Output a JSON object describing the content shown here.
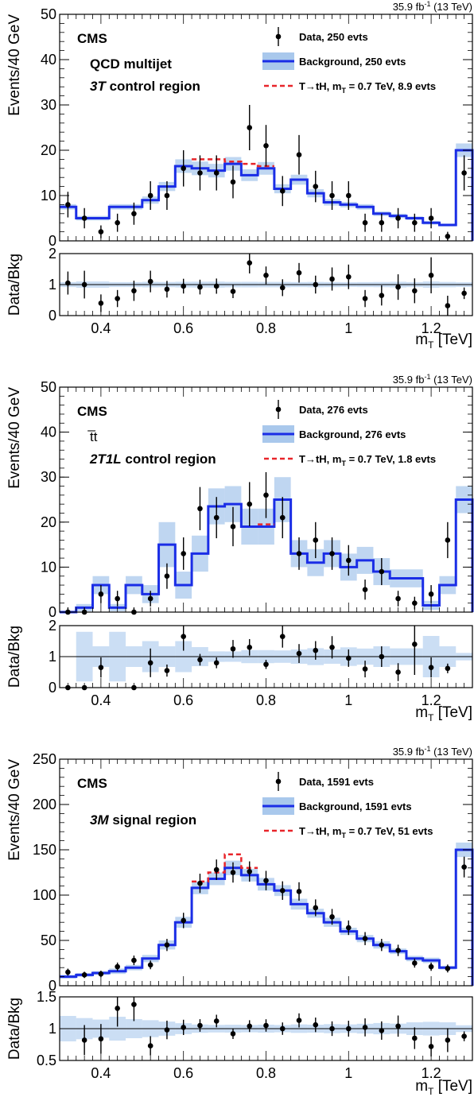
{
  "chart_data": [
    {
      "type": "histogram",
      "lumi": "35.9 fb",
      "lumi_sup": "-1",
      "energy": "(13 TeV)",
      "cms": "CMS",
      "title_plain": "QCD multijet",
      "region_italic": "3T",
      "region_rest": " control region",
      "ylabel": "Events/40 GeV",
      "ratio_ylabel": "Data/Bkg",
      "xlabel": "m",
      "xlabel_sub": "T",
      "xlabel_unit": " [TeV]",
      "xlim": [
        0.3,
        1.3
      ],
      "ylim": [
        0,
        50
      ],
      "yticks": [
        0,
        10,
        20,
        30,
        40,
        50
      ],
      "ratio_ylim": [
        0,
        2
      ],
      "ratio_yticks": [
        "0",
        "1",
        "2"
      ],
      "ratio_yticks_val": [
        0,
        1,
        2
      ],
      "xticks": [
        0.4,
        0.6,
        0.8,
        1.0,
        1.2
      ],
      "xtick_labels": [
        "0.4",
        "0.6",
        "0.8",
        "1",
        "1.2"
      ],
      "legend": {
        "data": "Data, 250 evts",
        "background": "Background, 250 evts",
        "signal_prefix": "T→tH, m",
        "signal_sub": "T",
        "signal_suffix": " = 0.7 TeV, 8.9 evts"
      },
      "bins": [
        0.3,
        0.34,
        0.38,
        0.42,
        0.46,
        0.5,
        0.54,
        0.58,
        0.62,
        0.66,
        0.7,
        0.74,
        0.78,
        0.82,
        0.86,
        0.9,
        0.94,
        0.98,
        1.02,
        1.06,
        1.1,
        1.14,
        1.18,
        1.22,
        1.26,
        1.3
      ],
      "background": [
        7.5,
        5,
        5,
        7.5,
        7.5,
        9,
        12,
        16.5,
        16,
        15.5,
        17,
        14.5,
        16,
        11.5,
        13.5,
        10.5,
        8.5,
        8,
        7.5,
        6,
        5.5,
        5,
        4,
        3.5,
        20
      ],
      "bkg_unc": [
        0.6,
        0.5,
        0.5,
        0.6,
        0.6,
        0.8,
        1,
        1.5,
        1.5,
        1.5,
        1.5,
        1.3,
        1.4,
        1,
        1.1,
        0.9,
        0.7,
        0.6,
        0.6,
        0.5,
        0.5,
        0.4,
        0.4,
        0.3,
        1.5
      ],
      "signal": [
        null,
        null,
        null,
        null,
        null,
        null,
        null,
        null,
        18,
        18,
        17.5,
        17,
        16.5,
        null,
        null,
        null,
        null,
        null,
        null,
        null,
        null,
        null,
        null,
        null,
        null
      ],
      "data": [
        8,
        5,
        2,
        4,
        6,
        10,
        10,
        16,
        15,
        15,
        13,
        25,
        21,
        11,
        19,
        12,
        10,
        10,
        4,
        4,
        5,
        4,
        5,
        1,
        15
      ],
      "ratio": [
        1.05,
        1.0,
        0.4,
        0.55,
        0.8,
        1.1,
        0.85,
        0.95,
        0.92,
        0.95,
        0.78,
        1.7,
        1.3,
        0.9,
        1.38,
        1.0,
        1.18,
        1.25,
        0.55,
        0.65,
        0.92,
        0.8,
        1.3,
        0.32,
        0.72
      ]
    },
    {
      "type": "histogram",
      "lumi": "35.9 fb",
      "lumi_sup": "-1",
      "energy": "(13 TeV)",
      "cms": "CMS",
      "title_plain": "t̅t",
      "region_italic": "2T1L",
      "region_rest": " control region",
      "ylabel": "Events/40 GeV",
      "ratio_ylabel": "Data/Bkg",
      "xlabel": "m",
      "xlabel_sub": "T",
      "xlabel_unit": " [TeV]",
      "xlim": [
        0.3,
        1.3
      ],
      "ylim": [
        0,
        50
      ],
      "yticks": [
        0,
        10,
        20,
        30,
        40,
        50
      ],
      "ratio_ylim": [
        0,
        2
      ],
      "ratio_yticks": [
        "0",
        "1",
        "2"
      ],
      "ratio_yticks_val": [
        0,
        1,
        2
      ],
      "xticks": [
        0.4,
        0.6,
        0.8,
        1.0,
        1.2
      ],
      "xtick_labels": [
        "0.4",
        "0.6",
        "0.8",
        "1",
        "1.2"
      ],
      "legend": {
        "data": "Data, 276 evts",
        "background": "Background, 276 evts",
        "signal_prefix": "T→tH, m",
        "signal_sub": "T",
        "signal_suffix": " = 0.7 TeV, 1.8 evts"
      },
      "bins": [
        0.3,
        0.34,
        0.38,
        0.42,
        0.46,
        0.5,
        0.54,
        0.58,
        0.62,
        0.66,
        0.7,
        0.74,
        0.78,
        0.82,
        0.86,
        0.9,
        0.94,
        0.98,
        1.02,
        1.06,
        1.1,
        1.14,
        1.18,
        1.22,
        1.26,
        1.3
      ],
      "background": [
        0,
        1,
        6,
        1,
        6,
        4,
        15,
        6,
        13,
        23.5,
        24,
        19,
        19,
        25,
        13,
        11,
        13,
        10,
        11.5,
        9,
        7.5,
        7.5,
        1.5,
        6,
        25
      ],
      "bkg_unc": [
        0.3,
        0.8,
        2,
        0.8,
        2,
        2,
        5,
        3,
        4,
        4,
        4,
        4,
        4,
        5,
        3,
        3,
        3,
        3,
        3,
        3,
        2,
        2,
        1,
        2,
        3
      ],
      "signal": [
        null,
        null,
        null,
        null,
        null,
        null,
        null,
        null,
        null,
        null,
        null,
        null,
        19.5,
        null,
        null,
        null,
        null,
        null,
        null,
        null,
        null,
        null,
        null,
        null,
        null
      ],
      "data": [
        0,
        0,
        4,
        3,
        0,
        3,
        8,
        13,
        23,
        21,
        19,
        24,
        26,
        21,
        13,
        16,
        13,
        11.5,
        5,
        9,
        3,
        2,
        4,
        16,
        null
      ],
      "ratio": [
        0,
        0,
        0.65,
        null,
        0,
        0.8,
        0.55,
        1.65,
        0.9,
        0.8,
        1.25,
        1.3,
        0.75,
        1.65,
        1.1,
        1.2,
        1.3,
        0.95,
        0.6,
        1.0,
        0.5,
        1.4,
        0.65,
        0.62,
        null
      ]
    },
    {
      "type": "histogram",
      "lumi": "35.9 fb",
      "lumi_sup": "-1",
      "energy": "(13 TeV)",
      "cms": "CMS",
      "title_plain": "",
      "region_italic": "3M",
      "region_rest": " signal region",
      "ylabel": "Events/40 GeV",
      "ratio_ylabel": "Data/Bkg",
      "xlabel": "m",
      "xlabel_sub": "T",
      "xlabel_unit": " [TeV]",
      "xlim": [
        0.3,
        1.3
      ],
      "ylim": [
        0,
        250
      ],
      "yticks": [
        0,
        50,
        100,
        150,
        200,
        250
      ],
      "ratio_ylim": [
        0.5,
        1.5
      ],
      "ratio_yticks": [
        "0.5",
        "1",
        "1.5"
      ],
      "ratio_yticks_val": [
        0.5,
        1,
        1.5
      ],
      "xticks": [
        0.4,
        0.6,
        0.8,
        1.0,
        1.2
      ],
      "xtick_labels": [
        "0.4",
        "0.6",
        "0.8",
        "1",
        "1.2"
      ],
      "legend": {
        "data": "Data, 1591 evts",
        "background": "Background, 1591 evts",
        "signal_prefix": "T→tH, m",
        "signal_sub": "T",
        "signal_suffix": " = 0.7 TeV, 51 evts"
      },
      "bins": [
        0.3,
        0.34,
        0.38,
        0.42,
        0.46,
        0.5,
        0.54,
        0.58,
        0.62,
        0.66,
        0.7,
        0.74,
        0.78,
        0.82,
        0.86,
        0.9,
        0.94,
        0.98,
        1.02,
        1.06,
        1.1,
        1.14,
        1.18,
        1.22,
        1.26,
        1.3
      ],
      "background": [
        10,
        12,
        14,
        16,
        20,
        30,
        45,
        70,
        108,
        118,
        130,
        122,
        112,
        105,
        90,
        80,
        70,
        60,
        52,
        45,
        38,
        30,
        28,
        20,
        150
      ],
      "bkg_unc": [
        2,
        2,
        2,
        3,
        3,
        4,
        5,
        6,
        7,
        7,
        8,
        7,
        7,
        6,
        6,
        5,
        5,
        4,
        4,
        4,
        3,
        3,
        3,
        2,
        8
      ],
      "signal": [
        null,
        null,
        null,
        null,
        null,
        null,
        null,
        null,
        115,
        125,
        145,
        130,
        null,
        null,
        null,
        null,
        null,
        null,
        null,
        null,
        null,
        null,
        null,
        null,
        null
      ],
      "data": [
        15,
        12,
        13,
        21,
        28,
        23,
        45,
        72,
        113,
        128,
        125,
        126,
        116,
        105,
        104,
        86,
        76,
        64,
        52,
        45,
        39,
        25,
        21,
        19,
        131
      ],
      "ratio": [
        null,
        0.82,
        0.84,
        1.32,
        1.38,
        0.73,
        0.98,
        1.02,
        1.05,
        1.12,
        0.92,
        1.04,
        1.05,
        1.0,
        1.13,
        1.06,
        1.0,
        1.0,
        1.02,
        0.97,
        1.04,
        0.85,
        0.72,
        0.82,
        0.88
      ]
    }
  ]
}
